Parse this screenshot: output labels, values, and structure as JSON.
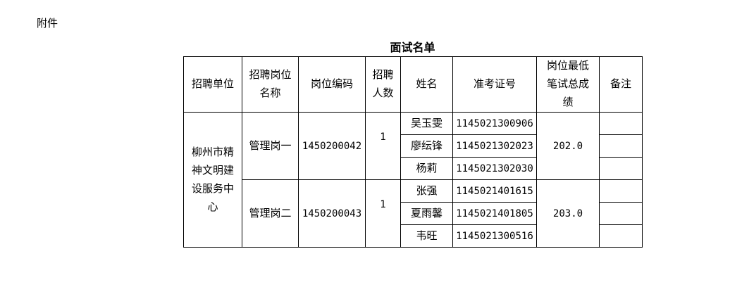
{
  "attachment_label": "附件",
  "title": "面试名单",
  "headers": [
    "招聘单位",
    "招聘岗位名称",
    "岗位编码",
    "招聘人数",
    "姓名",
    "准考证号",
    "岗位最低笔试总成绩",
    "备注"
  ],
  "unit": "柳州市精神文明建设服务中心",
  "positions": [
    {
      "name": "管理岗一",
      "code": "1450200042",
      "count": "1",
      "min_score": "202.0",
      "candidates": [
        {
          "name": "吴玉雯",
          "exam_id": "1145021300906",
          "note": ""
        },
        {
          "name": "廖纭锋",
          "exam_id": "1145021302023",
          "note": ""
        },
        {
          "name": "杨莉",
          "exam_id": "1145021302030",
          "note": ""
        }
      ]
    },
    {
      "name": "管理岗二",
      "code": "1450200043",
      "count": "1",
      "min_score": "203.0",
      "candidates": [
        {
          "name": "张强",
          "exam_id": "1145021401615",
          "note": ""
        },
        {
          "name": "夏雨馨",
          "exam_id": "1145021401805",
          "note": ""
        },
        {
          "name": "韦旺",
          "exam_id": "1145021300516",
          "note": ""
        }
      ]
    }
  ]
}
